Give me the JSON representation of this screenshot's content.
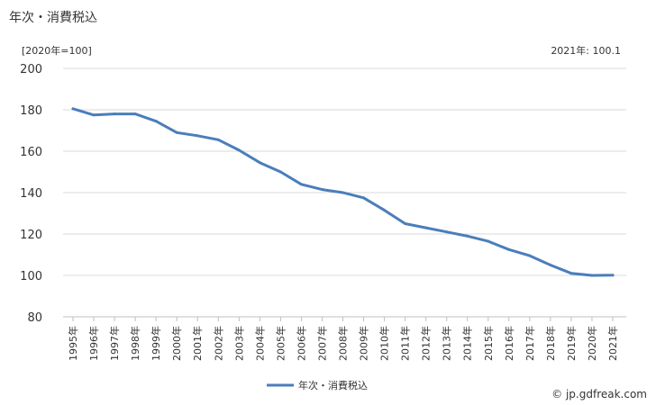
{
  "header": {
    "title": "年次・消費税込",
    "unit": "[2020年=100]",
    "note": "2021年: 100.1"
  },
  "credit": "© jp.gdfreak.com",
  "chart_data": {
    "type": "line",
    "title": "年次・消費税込",
    "ylabel": "[2020年=100]",
    "ylim": [
      80,
      200
    ],
    "yticks": [
      80,
      100,
      120,
      140,
      160,
      180,
      200
    ],
    "grid": true,
    "legend_position": "bottom-center",
    "categories": [
      "1995年",
      "1996年",
      "1997年",
      "1998年",
      "1999年",
      "2000年",
      "2001年",
      "2002年",
      "2003年",
      "2004年",
      "2005年",
      "2006年",
      "2007年",
      "2008年",
      "2009年",
      "2010年",
      "2011年",
      "2012年",
      "2013年",
      "2014年",
      "2015年",
      "2016年",
      "2017年",
      "2018年",
      "2019年",
      "2020年",
      "2021年"
    ],
    "series": [
      {
        "name": "年次・消費税込",
        "color": "#4a7ebb",
        "values": [
          180.5,
          177.5,
          178.0,
          178.0,
          174.5,
          169.0,
          167.5,
          165.5,
          160.5,
          154.5,
          150.0,
          144.0,
          141.5,
          140.0,
          137.5,
          131.5,
          125.0,
          123.0,
          121.0,
          119.0,
          116.5,
          112.5,
          109.5,
          105.0,
          101.0,
          100.0,
          100.1
        ]
      }
    ]
  }
}
